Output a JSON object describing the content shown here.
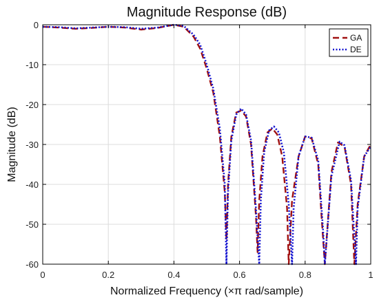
{
  "chart_data": {
    "type": "line",
    "title": "Magnitude Response (dB)",
    "xlabel": "Normalized Frequency (×π rad/sample)",
    "ylabel": "Magnitude (dB)",
    "xlim": [
      0,
      1
    ],
    "ylim": [
      -60,
      0
    ],
    "xticks": [
      0,
      0.2,
      0.4,
      0.6,
      0.8,
      1
    ],
    "xtick_labels": [
      "0",
      "0.2",
      "0.4",
      "0.6",
      "0.8",
      "1"
    ],
    "yticks": [
      0,
      -10,
      -20,
      -30,
      -40,
      -50,
      -60
    ],
    "ytick_labels": [
      "0",
      "-10",
      "-20",
      "-30",
      "-40",
      "-50",
      "-60"
    ],
    "grid": true,
    "legend_position": "top-right",
    "series": [
      {
        "name": "GA",
        "color": "#a01010",
        "style": "dashed",
        "x": [
          0,
          0.05,
          0.1,
          0.15,
          0.2,
          0.25,
          0.3,
          0.35,
          0.4,
          0.43,
          0.46,
          0.48,
          0.5,
          0.52,
          0.54,
          0.555,
          0.56,
          0.565,
          0.575,
          0.59,
          0.605,
          0.62,
          0.635,
          0.65,
          0.655,
          0.66,
          0.67,
          0.685,
          0.7,
          0.715,
          0.73,
          0.745,
          0.75,
          0.76,
          0.78,
          0.8,
          0.82,
          0.84,
          0.85,
          0.86,
          0.88,
          0.9,
          0.92,
          0.94,
          0.95,
          0.96,
          0.98,
          1.0
        ],
        "y": [
          -0.5,
          -0.7,
          -1.0,
          -0.8,
          -0.5,
          -0.7,
          -1.2,
          -0.8,
          0,
          -0.5,
          -3,
          -6,
          -11,
          -17,
          -28,
          -42,
          -54,
          -40,
          -28,
          -22,
          -21.5,
          -23,
          -30,
          -48,
          -57,
          -44,
          -33,
          -27,
          -26,
          -27.5,
          -33,
          -46,
          -60,
          -44,
          -33,
          -28,
          -28.5,
          -35,
          -48,
          -60,
          -37,
          -29.5,
          -30.5,
          -40,
          -60,
          -45,
          -33,
          -30
        ]
      },
      {
        "name": "DE",
        "color": "#1010d0",
        "style": "dotted",
        "x": [
          0,
          0.05,
          0.1,
          0.15,
          0.2,
          0.25,
          0.3,
          0.35,
          0.4,
          0.43,
          0.46,
          0.48,
          0.5,
          0.52,
          0.54,
          0.555,
          0.56,
          0.565,
          0.575,
          0.59,
          0.605,
          0.62,
          0.635,
          0.65,
          0.66,
          0.665,
          0.675,
          0.69,
          0.705,
          0.72,
          0.735,
          0.75,
          0.76,
          0.765,
          0.78,
          0.8,
          0.82,
          0.84,
          0.855,
          0.86,
          0.88,
          0.905,
          0.92,
          0.94,
          0.955,
          0.96,
          0.98,
          1.0
        ],
        "y": [
          -0.5,
          -0.6,
          -0.9,
          -0.7,
          -0.5,
          -0.6,
          -1.0,
          -0.7,
          0,
          -0.3,
          -2.5,
          -5,
          -10,
          -16,
          -26,
          -40,
          -60,
          -42,
          -29,
          -22.5,
          -21,
          -22.5,
          -29,
          -46,
          -60,
          -44,
          -32,
          -26.5,
          -25.5,
          -27,
          -32,
          -45,
          -60,
          -46,
          -33,
          -28,
          -28.3,
          -34,
          -52,
          -60,
          -38,
          -29.3,
          -30.2,
          -39,
          -60,
          -46,
          -33,
          -30.5
        ]
      }
    ]
  }
}
